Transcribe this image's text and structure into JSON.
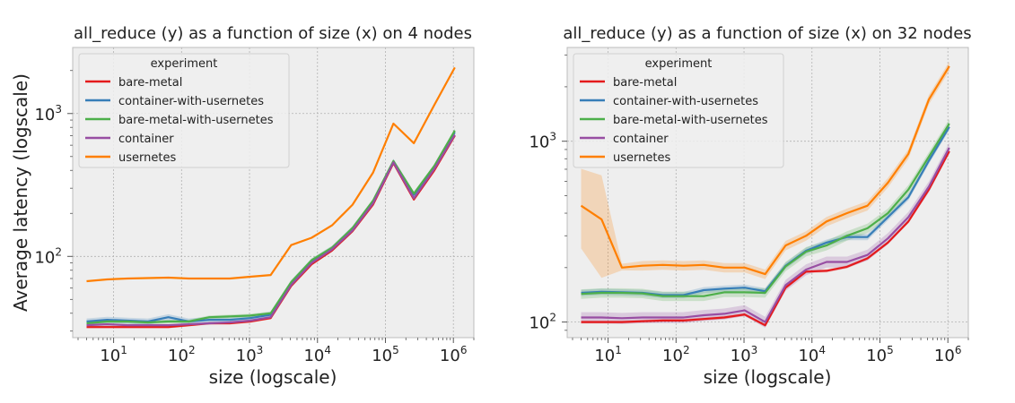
{
  "chart_data": [
    {
      "type": "line",
      "title": "all_reduce (y) as a function of size (x) on 4 nodes",
      "xlabel": "size (logscale)",
      "ylabel": "Average latency (logscale)",
      "xscale": "log",
      "yscale": "log",
      "xlim": [
        2.5,
        2000000
      ],
      "ylim": [
        27,
        2900
      ],
      "xticks": [
        10,
        100,
        1000,
        10000,
        100000,
        1000000
      ],
      "xtick_labels": [
        [
          "10",
          "1"
        ],
        [
          "10",
          "2"
        ],
        [
          "10",
          "3"
        ],
        [
          "10",
          "4"
        ],
        [
          "10",
          "5"
        ],
        [
          "10",
          "6"
        ]
      ],
      "yticks": [
        100,
        1000
      ],
      "ytick_labels": [
        [
          "10",
          "2"
        ],
        [
          "10",
          "3"
        ]
      ],
      "grid": true,
      "legend": {
        "title": "experiment",
        "placement": "top-left"
      },
      "x": [
        4,
        8,
        16,
        32,
        64,
        128,
        256,
        512,
        1024,
        2048,
        4096,
        8192,
        16384,
        32768,
        65536,
        131072,
        262144,
        524288,
        1048576
      ],
      "series": [
        {
          "name": "bare-metal",
          "color": "#e41a1c",
          "band": 0.02,
          "values": [
            32,
            32,
            32,
            32,
            32,
            33,
            34,
            34,
            35,
            37,
            62,
            88,
            110,
            150,
            230,
            450,
            250,
            400,
            700
          ]
        },
        {
          "name": "container-with-usernetes",
          "color": "#377eb8",
          "band": 0.05,
          "values": [
            35,
            36,
            35.5,
            35,
            37.5,
            35,
            36,
            36,
            37,
            39,
            65,
            92,
            113,
            155,
            240,
            460,
            270,
            420,
            740
          ]
        },
        {
          "name": "bare-metal-with-usernetes",
          "color": "#4daf4a",
          "band": 0.03,
          "values": [
            34,
            35,
            35,
            34.5,
            35,
            35,
            37.5,
            38,
            38.5,
            40,
            66,
            94,
            115,
            158,
            245,
            465,
            275,
            430,
            760
          ]
        },
        {
          "name": "container",
          "color": "#984ea3",
          "band": 0.02,
          "values": [
            33,
            33.5,
            33,
            33,
            33,
            33.5,
            34,
            34.5,
            35.5,
            37.5,
            63,
            90,
            112,
            152,
            235,
            455,
            255,
            410,
            710
          ]
        },
        {
          "name": "usernetes",
          "color": "#ff7f00",
          "band": 0.01,
          "values": [
            67,
            69,
            70,
            70.5,
            71,
            70,
            70,
            70,
            72,
            74,
            120,
            135,
            165,
            230,
            385,
            850,
            620,
            1150,
            2100
          ]
        }
      ]
    },
    {
      "type": "line",
      "title": "all_reduce (y) as a function of size (x) on 32 nodes",
      "xlabel": "size (logscale)",
      "ylabel": "",
      "xscale": "log",
      "yscale": "log",
      "xlim": [
        2.5,
        2000000
      ],
      "ylim": [
        82,
        3300
      ],
      "xticks": [
        10,
        100,
        1000,
        10000,
        100000,
        1000000
      ],
      "xtick_labels": [
        [
          "10",
          "1"
        ],
        [
          "10",
          "2"
        ],
        [
          "10",
          "3"
        ],
        [
          "10",
          "4"
        ],
        [
          "10",
          "5"
        ],
        [
          "10",
          "6"
        ]
      ],
      "yticks": [
        100,
        1000
      ],
      "ytick_labels": [
        [
          "10",
          "2"
        ],
        [
          "10",
          "3"
        ]
      ],
      "grid": true,
      "legend": {
        "title": "experiment",
        "placement": "top-left"
      },
      "x": [
        4,
        8,
        16,
        32,
        64,
        128,
        256,
        512,
        1024,
        2048,
        4096,
        8192,
        16384,
        32768,
        65536,
        131072,
        262144,
        524288,
        1048576
      ],
      "series": [
        {
          "name": "bare-metal",
          "color": "#e41a1c",
          "band": 0.02,
          "values": [
            100,
            100,
            100,
            101,
            102,
            102,
            104,
            106,
            110,
            96,
            155,
            190,
            192,
            202,
            225,
            275,
            360,
            540,
            880
          ]
        },
        {
          "name": "container-with-usernetes",
          "color": "#377eb8",
          "band": 0.04,
          "values": [
            145,
            147,
            146,
            145,
            141,
            141,
            150,
            153,
            155,
            148,
            205,
            248,
            275,
            295,
            295,
            380,
            490,
            780,
            1200
          ]
        },
        {
          "name": "bare-metal-with-usernetes",
          "color": "#4daf4a",
          "band": 0.06,
          "values": [
            143,
            145,
            145,
            144,
            139,
            139,
            139,
            146,
            146,
            145,
            203,
            245,
            265,
            300,
            330,
            400,
            540,
            820,
            1250
          ]
        },
        {
          "name": "container",
          "color": "#984ea3",
          "band": 0.07,
          "values": [
            106,
            106,
            105,
            106,
            106,
            106,
            109,
            111,
            116,
            100,
            160,
            195,
            215,
            215,
            235,
            290,
            380,
            560,
            920
          ]
        },
        {
          "name": "usernetes",
          "color": "#ff7f00",
          "band": 0.06,
          "band_left": [
            0.6,
            0.75,
            0.05
          ],
          "values": [
            440,
            370,
            200,
            205,
            207,
            205,
            207,
            200,
            200,
            184,
            265,
            300,
            360,
            400,
            440,
            590,
            850,
            1700,
            2600
          ]
        }
      ]
    }
  ]
}
